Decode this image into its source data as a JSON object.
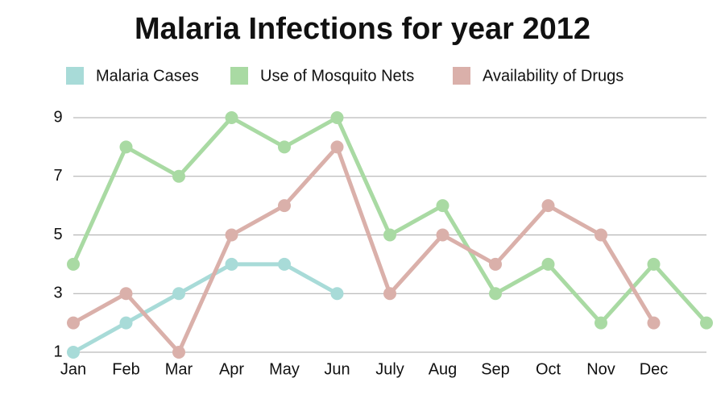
{
  "chart_data": {
    "type": "line",
    "title": "Malaria Infections for year 2012",
    "categories": [
      "Jan",
      "Feb",
      "Mar",
      "Apr",
      "May",
      "Jun",
      "July",
      "Aug",
      "Sep",
      "Oct",
      "Nov",
      "Dec",
      null
    ],
    "series": [
      {
        "name": "Malaria Cases",
        "color": "#a8dbd8",
        "values": [
          1,
          2,
          3,
          4,
          4,
          3,
          null,
          null,
          null,
          null,
          null,
          null,
          null
        ]
      },
      {
        "name": "Use of Mosquito Nets",
        "color": "#a9daa3",
        "values": [
          4,
          8,
          7,
          9,
          8,
          9,
          5,
          6,
          3,
          4,
          2,
          4,
          2
        ]
      },
      {
        "name": "Availability of Drugs",
        "color": "#dab0aa",
        "values": [
          2,
          3,
          1,
          5,
          6,
          8,
          3,
          5,
          4,
          6,
          5,
          2,
          null
        ]
      }
    ],
    "ylim": [
      1,
      9
    ],
    "yticks": [
      1,
      3,
      5,
      7,
      9
    ],
    "grid": true
  }
}
